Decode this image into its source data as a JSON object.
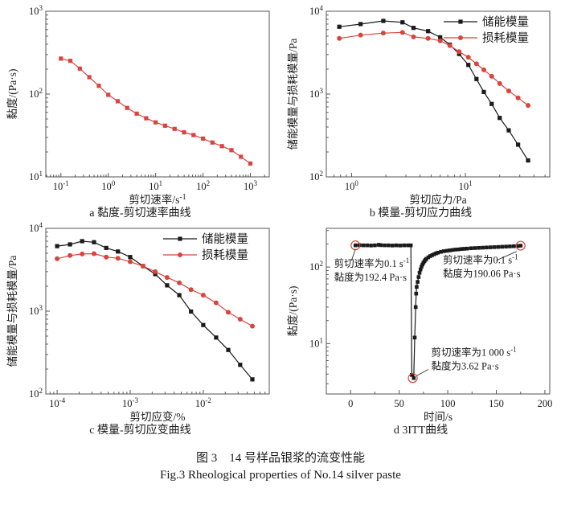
{
  "figure": {
    "caption_cn": "图 3　14 号样品银浆的流变性能",
    "caption_en": "Fig.3 Rheological properties of No.14 silver paste"
  },
  "colors": {
    "storage_modulus": "#1a1a1a",
    "loss_modulus": "#d8453e",
    "annotation_circle": "#d8453e",
    "axis": "#555555"
  },
  "chart_data": [
    {
      "id": "a",
      "type": "line",
      "caption": "a 黏度-剪切速率曲线",
      "xlabel": "剪切速率/s^{-1}",
      "ylabel": "黏度/(Pa·s)",
      "xscale": "log",
      "yscale": "log",
      "xlim": [
        0.048,
        2500
      ],
      "ylim": [
        10,
        1000
      ],
      "xticks": [
        {
          "v": 0.1,
          "label": "10^{-1}"
        },
        {
          "v": 1,
          "label": "10^{0}"
        },
        {
          "v": 10,
          "label": "10^{1}"
        },
        {
          "v": 100,
          "label": "10^{2}"
        },
        {
          "v": 1000,
          "label": "10^{3}"
        }
      ],
      "yticks": [
        {
          "v": 10,
          "label": "10^{1}"
        },
        {
          "v": 100,
          "label": "10^{2}"
        },
        {
          "v": 1000,
          "label": "10^{3}"
        }
      ],
      "series": [
        {
          "name": "黏度",
          "color": "#d8453e",
          "marker": "square",
          "points": [
            [
              0.1,
              268
            ],
            [
              0.158,
              252
            ],
            [
              0.251,
              203
            ],
            [
              0.398,
              160
            ],
            [
              0.631,
              126
            ],
            [
              1,
              98
            ],
            [
              1.58,
              82
            ],
            [
              2.51,
              68
            ],
            [
              3.98,
              58
            ],
            [
              6.31,
              51
            ],
            [
              10,
              45.5
            ],
            [
              15.8,
              41.5
            ],
            [
              25.1,
              38
            ],
            [
              39.8,
              34.5
            ],
            [
              63.1,
              32
            ],
            [
              100,
              29
            ],
            [
              158,
              26
            ],
            [
              251,
              23.5
            ],
            [
              398,
              21
            ],
            [
              631,
              17.5
            ],
            [
              1000,
              14.5
            ]
          ]
        }
      ]
    },
    {
      "id": "b",
      "type": "line",
      "caption": "b 模量-剪切应力曲线",
      "xlabel": "剪切应力/Pa",
      "ylabel": "储能模量与损耗模量/Pa",
      "xscale": "log",
      "yscale": "log",
      "xlim": [
        0.6,
        55
      ],
      "ylim": [
        100,
        10000
      ],
      "xticks": [
        {
          "v": 1,
          "label": "10^{0}"
        },
        {
          "v": 10,
          "label": "10^{1}"
        }
      ],
      "yticks": [
        {
          "v": 100,
          "label": "10^{2}"
        },
        {
          "v": 1000,
          "label": "10^{3}"
        },
        {
          "v": 10000,
          "label": "10^{4}"
        }
      ],
      "legend": {
        "position": "top-right"
      },
      "series": [
        {
          "name": "储能模量",
          "color": "#1a1a1a",
          "marker": "square",
          "points": [
            [
              0.78,
              6500
            ],
            [
              1.2,
              7000
            ],
            [
              1.9,
              7650
            ],
            [
              2.8,
              7350
            ],
            [
              3.5,
              6300
            ],
            [
              4.7,
              5750
            ],
            [
              6.0,
              4850
            ],
            [
              7.3,
              3950
            ],
            [
              8.8,
              3050
            ],
            [
              10.6,
              2250
            ],
            [
              12.5,
              1520
            ],
            [
              14.5,
              1060
            ],
            [
              17,
              760
            ],
            [
              20,
              515
            ],
            [
              24,
              365
            ],
            [
              29,
              245
            ],
            [
              35.5,
              158
            ]
          ]
        },
        {
          "name": "损耗模量",
          "color": "#d8453e",
          "marker": "circle",
          "points": [
            [
              0.78,
              4700
            ],
            [
              1.2,
              5150
            ],
            [
              1.9,
              5450
            ],
            [
              2.8,
              5550
            ],
            [
              3.5,
              4900
            ],
            [
              4.7,
              4700
            ],
            [
              6.0,
              4400
            ],
            [
              7.3,
              3850
            ],
            [
              8.8,
              3250
            ],
            [
              10.6,
              2780
            ],
            [
              12.5,
              2320
            ],
            [
              14.5,
              1960
            ],
            [
              17,
              1640
            ],
            [
              20,
              1340
            ],
            [
              24,
              1090
            ],
            [
              29,
              900
            ],
            [
              35.5,
              730
            ]
          ]
        }
      ]
    },
    {
      "id": "c",
      "type": "line",
      "caption": "c 模量-剪切应变曲线",
      "xlabel": "剪切应变/%",
      "ylabel": "储能模量与损耗模量/Pa",
      "xscale": "log",
      "yscale": "log",
      "xlim": [
        7e-05,
        0.08
      ],
      "ylim": [
        100,
        10000
      ],
      "xticks": [
        {
          "v": 0.0001,
          "label": "10^{-4}"
        },
        {
          "v": 0.001,
          "label": "10^{-3}"
        },
        {
          "v": 0.01,
          "label": "10^{-2}"
        }
      ],
      "yticks": [
        {
          "v": 100,
          "label": "10^{2}"
        },
        {
          "v": 1000,
          "label": "10^{3}"
        },
        {
          "v": 10000,
          "label": "10^{4}"
        }
      ],
      "legend": {
        "position": "top-right"
      },
      "series": [
        {
          "name": "储能模量",
          "color": "#1a1a1a",
          "marker": "square",
          "points": [
            [
              0.0001,
              6100
            ],
            [
              0.00015,
              6400
            ],
            [
              0.00022,
              7000
            ],
            [
              0.00032,
              6800
            ],
            [
              0.00047,
              5800
            ],
            [
              0.00068,
              5250
            ],
            [
              0.001,
              4500
            ],
            [
              0.0015,
              3500
            ],
            [
              0.0022,
              2800
            ],
            [
              0.0032,
              2050
            ],
            [
              0.0047,
              1560
            ],
            [
              0.0068,
              990
            ],
            [
              0.01,
              680
            ],
            [
              0.015,
              480
            ],
            [
              0.022,
              340
            ],
            [
              0.032,
              225
            ],
            [
              0.047,
              150
            ]
          ]
        },
        {
          "name": "损耗模量",
          "color": "#d8453e",
          "marker": "circle",
          "points": [
            [
              0.0001,
              4300
            ],
            [
              0.00015,
              4700
            ],
            [
              0.00022,
              4900
            ],
            [
              0.00032,
              4950
            ],
            [
              0.00047,
              4500
            ],
            [
              0.00068,
              4350
            ],
            [
              0.001,
              3950
            ],
            [
              0.0015,
              3500
            ],
            [
              0.0022,
              3000
            ],
            [
              0.0032,
              2550
            ],
            [
              0.0047,
              2200
            ],
            [
              0.0068,
              1820
            ],
            [
              0.01,
              1560
            ],
            [
              0.015,
              1260
            ],
            [
              0.022,
              970
            ],
            [
              0.032,
              800
            ],
            [
              0.047,
              660
            ]
          ]
        }
      ]
    },
    {
      "id": "d",
      "type": "line",
      "caption": "d 3ITT曲线",
      "xlabel": "时间/s",
      "ylabel": "黏度/(Pa·s)",
      "xscale": "linear",
      "yscale": "log",
      "xlim": [
        -25,
        205
      ],
      "ylim": [
        2.2,
        320
      ],
      "xticks": [
        {
          "v": 0,
          "label": "0"
        },
        {
          "v": 50,
          "label": "50"
        },
        {
          "v": 100,
          "label": "100"
        },
        {
          "v": 150,
          "label": "150"
        },
        {
          "v": 200,
          "label": "200"
        }
      ],
      "yticks": [
        {
          "v": 10,
          "label": "10^{1}"
        },
        {
          "v": 100,
          "label": "10^{2}"
        }
      ],
      "series": [
        {
          "name": "黏度",
          "color": "#1a1a1a",
          "marker": "square",
          "markersize": 4.6,
          "points": [
            [
              5,
              192
            ],
            [
              9,
              193
            ],
            [
              13,
              192
            ],
            [
              17,
              192
            ],
            [
              21,
              191
            ],
            [
              25,
              192
            ],
            [
              29,
              195
            ],
            [
              31,
              193
            ],
            [
              35,
              192
            ],
            [
              39,
              192
            ],
            [
              43,
              191
            ],
            [
              47,
              192
            ],
            [
              51,
              191
            ],
            [
              55,
              192
            ],
            [
              59,
              192
            ],
            [
              62,
              192
            ],
            [
              63,
              3.9
            ],
            [
              65,
              3.55
            ],
            [
              66,
              12
            ],
            [
              67,
              30
            ],
            [
              67.5,
              45
            ],
            [
              68,
              55
            ],
            [
              69,
              64
            ],
            [
              70,
              74
            ],
            [
              71,
              84
            ],
            [
              72,
              93
            ],
            [
              73,
              101
            ],
            [
              74,
              108
            ],
            [
              75,
              114
            ],
            [
              76,
              119
            ],
            [
              77,
              124
            ],
            [
              78,
              128
            ],
            [
              80,
              134
            ],
            [
              82,
              139
            ],
            [
              84,
              143
            ],
            [
              86,
              147
            ],
            [
              88,
              151
            ],
            [
              90,
              154
            ],
            [
              93,
              158
            ],
            [
              96,
              161
            ],
            [
              99,
              163
            ],
            [
              102,
              165
            ],
            [
              105,
              167
            ],
            [
              108,
              169
            ],
            [
              111,
              170
            ],
            [
              114,
              172
            ],
            [
              117,
              173
            ],
            [
              120,
              174
            ],
            [
              124,
              176
            ],
            [
              128,
              177
            ],
            [
              132,
              178
            ],
            [
              136,
              179
            ],
            [
              140,
              180
            ],
            [
              144,
              181
            ],
            [
              148,
              182
            ],
            [
              152,
              183
            ],
            [
              156,
              184
            ],
            [
              160,
              185
            ],
            [
              164,
              186
            ],
            [
              168,
              187
            ],
            [
              172,
              188
            ],
            [
              175,
              190
            ]
          ]
        }
      ],
      "highlight_circles": [
        [
          5,
          192
        ],
        [
          64,
          3.55
        ],
        [
          175,
          190
        ]
      ],
      "annotations": [
        {
          "lines": [
            "剪切速率为0.1 s^{-1}",
            "黏度为192.4 Pa·s"
          ],
          "text_x": -17,
          "text_y": 100,
          "circle": [
            5,
            192
          ],
          "leader": [
            [
              5,
              172
            ],
            [
              1,
              122
            ]
          ]
        },
        {
          "lines": [
            "剪切速率为0.1 s^{-1}",
            "黏度为190.06 Pa·s"
          ],
          "text_x": 95,
          "text_y": 112,
          "circle": [
            175,
            190
          ],
          "leader": [
            [
              171,
              160
            ],
            [
              150,
              122
            ]
          ]
        },
        {
          "lines": [
            "剪切速率为1 000 s^{-1}",
            "黏度为3.62 Pa·s"
          ],
          "text_x": 83,
          "text_y": 6.9,
          "circle": [
            64,
            3.55
          ],
          "leader": [
            [
              68,
              3.8
            ],
            [
              80,
              4.6
            ]
          ]
        }
      ]
    }
  ]
}
